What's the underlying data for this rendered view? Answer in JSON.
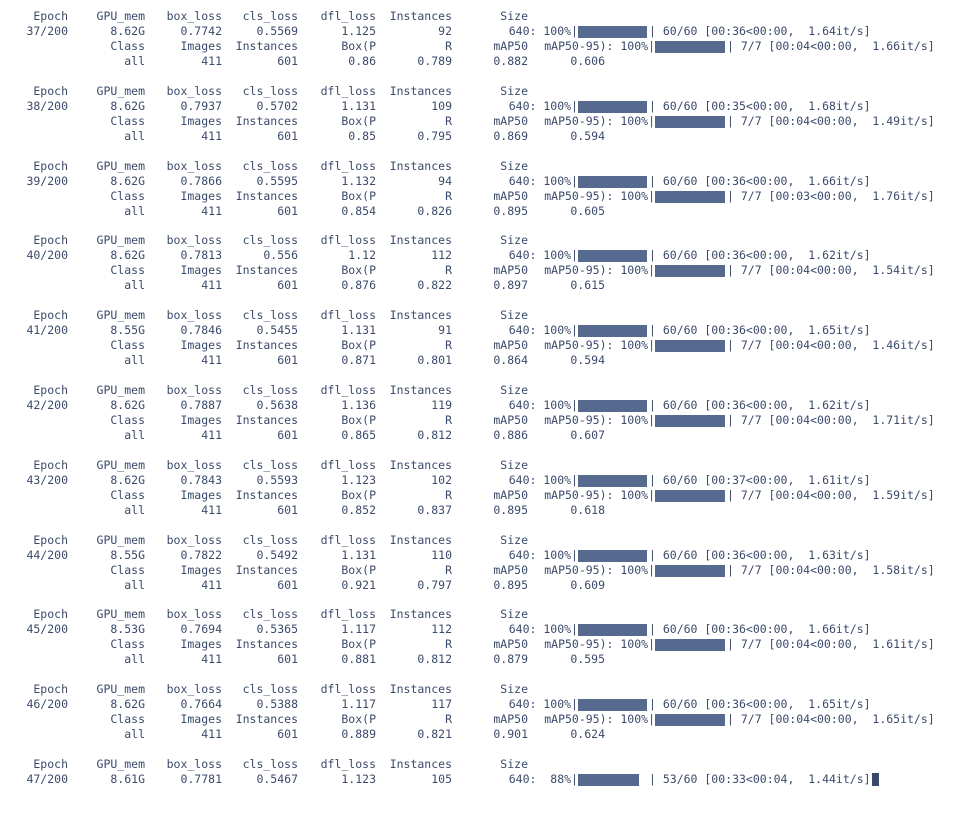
{
  "train_header": {
    "epoch": "Epoch",
    "gpu_mem": "GPU_mem",
    "box_loss": "box_loss",
    "cls_loss": "cls_loss",
    "dfl_loss": "dfl_loss",
    "instances": "Instances",
    "size": "Size"
  },
  "val_header": {
    "class": "Class",
    "images": "Images",
    "instances": "Instances",
    "box_p": "Box(P",
    "r": "R",
    "map50": "mAP50",
    "map50_95": "mAP50-95): 100%|"
  },
  "epochs": [
    {
      "epoch": "37/200",
      "gpu_mem": "8.62G",
      "box_loss": "0.7742",
      "cls_loss": "0.5569",
      "dfl_loss": "1.125",
      "instances": "92",
      "size": "640: 100%|",
      "train_progress": 1.0,
      "train_status": "| 60/60 [00:36<00:00,  1.64it/s]",
      "val_status": "| 7/7 [00:04<00:00,  1.66it/s]",
      "val_progress": 1.0,
      "cls": "all",
      "images": "411",
      "val_instances": "601",
      "p": "0.86",
      "r": "0.789",
      "map50": "0.882",
      "map50_95": "0.606"
    },
    {
      "epoch": "38/200",
      "gpu_mem": "8.62G",
      "box_loss": "0.7937",
      "cls_loss": "0.5702",
      "dfl_loss": "1.131",
      "instances": "109",
      "size": "640: 100%|",
      "train_progress": 1.0,
      "train_status": "| 60/60 [00:35<00:00,  1.68it/s]",
      "val_status": "| 7/7 [00:04<00:00,  1.49it/s]",
      "val_progress": 1.0,
      "cls": "all",
      "images": "411",
      "val_instances": "601",
      "p": "0.85",
      "r": "0.795",
      "map50": "0.869",
      "map50_95": "0.594"
    },
    {
      "epoch": "39/200",
      "gpu_mem": "8.62G",
      "box_loss": "0.7866",
      "cls_loss": "0.5595",
      "dfl_loss": "1.132",
      "instances": "94",
      "size": "640: 100%|",
      "train_progress": 1.0,
      "train_status": "| 60/60 [00:36<00:00,  1.66it/s]",
      "val_status": "| 7/7 [00:03<00:00,  1.76it/s]",
      "val_progress": 1.0,
      "cls": "all",
      "images": "411",
      "val_instances": "601",
      "p": "0.854",
      "r": "0.826",
      "map50": "0.895",
      "map50_95": "0.605"
    },
    {
      "epoch": "40/200",
      "gpu_mem": "8.62G",
      "box_loss": "0.7813",
      "cls_loss": "0.556",
      "dfl_loss": "1.12",
      "instances": "112",
      "size": "640: 100%|",
      "train_progress": 1.0,
      "train_status": "| 60/60 [00:36<00:00,  1.62it/s]",
      "val_status": "| 7/7 [00:04<00:00,  1.54it/s]",
      "val_progress": 1.0,
      "cls": "all",
      "images": "411",
      "val_instances": "601",
      "p": "0.876",
      "r": "0.822",
      "map50": "0.897",
      "map50_95": "0.615"
    },
    {
      "epoch": "41/200",
      "gpu_mem": "8.55G",
      "box_loss": "0.7846",
      "cls_loss": "0.5455",
      "dfl_loss": "1.131",
      "instances": "91",
      "size": "640: 100%|",
      "train_progress": 1.0,
      "train_status": "| 60/60 [00:36<00:00,  1.65it/s]",
      "val_status": "| 7/7 [00:04<00:00,  1.46it/s]",
      "val_progress": 1.0,
      "cls": "all",
      "images": "411",
      "val_instances": "601",
      "p": "0.871",
      "r": "0.801",
      "map50": "0.864",
      "map50_95": "0.594"
    },
    {
      "epoch": "42/200",
      "gpu_mem": "8.62G",
      "box_loss": "0.7887",
      "cls_loss": "0.5638",
      "dfl_loss": "1.136",
      "instances": "119",
      "size": "640: 100%|",
      "train_progress": 1.0,
      "train_status": "| 60/60 [00:36<00:00,  1.62it/s]",
      "val_status": "| 7/7 [00:04<00:00,  1.71it/s]",
      "val_progress": 1.0,
      "cls": "all",
      "images": "411",
      "val_instances": "601",
      "p": "0.865",
      "r": "0.812",
      "map50": "0.886",
      "map50_95": "0.607"
    },
    {
      "epoch": "43/200",
      "gpu_mem": "8.62G",
      "box_loss": "0.7843",
      "cls_loss": "0.5593",
      "dfl_loss": "1.123",
      "instances": "102",
      "size": "640: 100%|",
      "train_progress": 1.0,
      "train_status": "| 60/60 [00:37<00:00,  1.61it/s]",
      "val_status": "| 7/7 [00:04<00:00,  1.59it/s]",
      "val_progress": 1.0,
      "cls": "all",
      "images": "411",
      "val_instances": "601",
      "p": "0.852",
      "r": "0.837",
      "map50": "0.895",
      "map50_95": "0.618"
    },
    {
      "epoch": "44/200",
      "gpu_mem": "8.55G",
      "box_loss": "0.7822",
      "cls_loss": "0.5492",
      "dfl_loss": "1.131",
      "instances": "110",
      "size": "640: 100%|",
      "train_progress": 1.0,
      "train_status": "| 60/60 [00:36<00:00,  1.63it/s]",
      "val_status": "| 7/7 [00:04<00:00,  1.58it/s]",
      "val_progress": 1.0,
      "cls": "all",
      "images": "411",
      "val_instances": "601",
      "p": "0.921",
      "r": "0.797",
      "map50": "0.895",
      "map50_95": "0.609"
    },
    {
      "epoch": "45/200",
      "gpu_mem": "8.53G",
      "box_loss": "0.7694",
      "cls_loss": "0.5365",
      "dfl_loss": "1.117",
      "instances": "112",
      "size": "640: 100%|",
      "train_progress": 1.0,
      "train_status": "| 60/60 [00:36<00:00,  1.66it/s]",
      "val_status": "| 7/7 [00:04<00:00,  1.61it/s]",
      "val_progress": 1.0,
      "cls": "all",
      "images": "411",
      "val_instances": "601",
      "p": "0.881",
      "r": "0.812",
      "map50": "0.879",
      "map50_95": "0.595"
    },
    {
      "epoch": "46/200",
      "gpu_mem": "8.62G",
      "box_loss": "0.7664",
      "cls_loss": "0.5388",
      "dfl_loss": "1.117",
      "instances": "117",
      "size": "640: 100%|",
      "train_progress": 1.0,
      "train_status": "| 60/60 [00:36<00:00,  1.65it/s]",
      "val_status": "| 7/7 [00:04<00:00,  1.65it/s]",
      "val_progress": 1.0,
      "cls": "all",
      "images": "411",
      "val_instances": "601",
      "p": "0.889",
      "r": "0.821",
      "map50": "0.901",
      "map50_95": "0.624"
    },
    {
      "epoch": "47/200",
      "gpu_mem": "8.61G",
      "box_loss": "0.7781",
      "cls_loss": "0.5467",
      "dfl_loss": "1.123",
      "instances": "105",
      "size": "640:  88%|",
      "train_progress": 0.88,
      "train_status": "| 53/60 [00:33<00:04,  1.44it/s]"
    }
  ],
  "colors": {
    "text": "#3b4a6b",
    "bar": "#56698f",
    "cursor": "#3a4766",
    "background": "#ffffff"
  },
  "cursor_icon": "block-cursor-icon"
}
